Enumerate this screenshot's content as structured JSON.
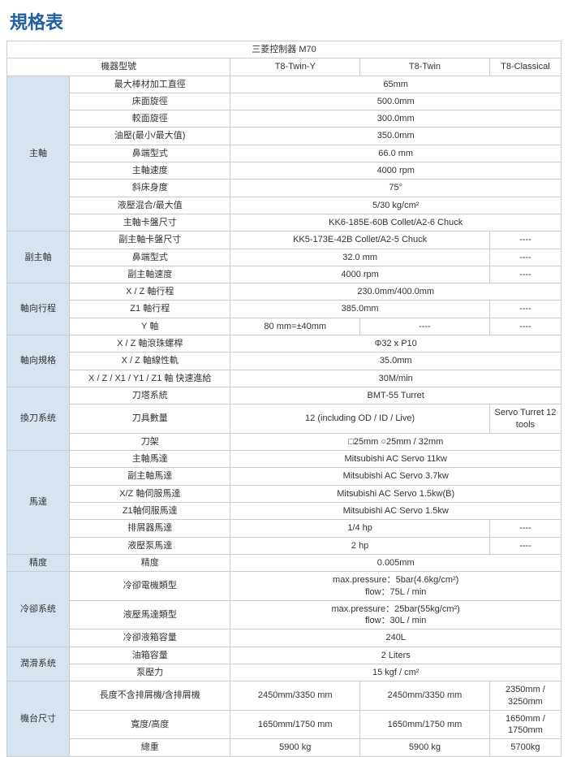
{
  "title": "規格表",
  "controller": "三菱控制器 M70",
  "modelLabel": "機器型號",
  "cols": [
    "T8-Twin-Y",
    "T8-Twin",
    "T8-Classical"
  ],
  "dash": "----",
  "g": {
    "spindle": {
      "cat": "主軸",
      "r1": [
        "最大棒材加工直徑",
        "65mm"
      ],
      "r2": [
        "床面旋徑",
        "500.0mm"
      ],
      "r3": [
        "較面旋徑",
        "300.0mm"
      ],
      "r4": [
        "油壓(最小/最大值)",
        "350.0mm"
      ],
      "r5": [
        "鼻端型式",
        "66.0 mm"
      ],
      "r6": [
        "主軸速度",
        "4000 rpm"
      ],
      "r7": [
        "斜床身度",
        "75°"
      ],
      "r8": [
        "液壓混合/最大值",
        "5/30 kg/cm²"
      ],
      "r9": [
        "主軸卡盤尺寸",
        "KK6-185E-60B Collet/A2-6 Chuck"
      ]
    },
    "sub": {
      "cat": "副主軸",
      "r1": [
        "副主軸卡盤尺寸",
        "KK5-173E-42B Collet/A2-5 Chuck"
      ],
      "r2": [
        "鼻端型式",
        "32.0 mm"
      ],
      "r3": [
        "副主軸速度",
        "4000 rpm"
      ]
    },
    "axial": {
      "cat": "軸向行程",
      "r1": [
        "X / Z 軸行程",
        "230.0mm/400.0mm"
      ],
      "r2": [
        "Z1 軸行程",
        "385.0mm"
      ],
      "r3": [
        "Y 軸",
        "80 mm=±40mm"
      ]
    },
    "axspec": {
      "cat": "軸向規格",
      "r1": [
        "X / Z 軸滾珠螺桿",
        "Φ32 x P10"
      ],
      "r2": [
        "X / Z 軸線性軌",
        "35.0mm"
      ],
      "r3": [
        "X / Z / X1 / Y1 / Z1 軸 快速進給",
        "30M/min"
      ]
    },
    "tool": {
      "cat": "換刀系统",
      "r1": [
        "刀塔系統",
        "BMT-55 Turret"
      ],
      "r2": [
        "刀具數量",
        "12 (including OD / ID / Live)",
        "Servo Turret 12 tools"
      ],
      "r3": [
        "刀架",
        "□25mm ○25mm / 32mm"
      ]
    },
    "motor": {
      "cat": "馬達",
      "r1": [
        "主軸馬達",
        "Mitsubishi AC Servo 11kw"
      ],
      "r2": [
        "副主軸馬達",
        "Mitsubishi AC Servo 3.7kw"
      ],
      "r3": [
        "X/Z 軸伺服馬達",
        "Mitsubishi AC Servo 1.5kw(B)"
      ],
      "r4": [
        "Z1軸伺服馬達",
        "Mitsubishi AC Servo 1.5kw"
      ],
      "r5": [
        "排屑器馬達",
        "1/4 hp"
      ],
      "r6": [
        "液壓泵馬達",
        "2 hp"
      ]
    },
    "prec": {
      "cat": "精度",
      "r1": [
        "精度",
        "0.005mm"
      ]
    },
    "cool": {
      "cat": "冷卻系统",
      "r1": [
        "冷卻電機類型",
        "max.pressure：5bar(4.6kg/cm²)\nflow：75L / min"
      ],
      "r2": [
        "液壓馬達類型",
        "max.pressure：25bar(55kg/cm²)\nflow：30L / min"
      ],
      "r3": [
        "冷卻液箱容量",
        "240L"
      ]
    },
    "lub": {
      "cat": "潤滑系统",
      "r1": [
        "油箱容量",
        "2 Liters"
      ],
      "r2": [
        "泵壓力",
        "15 kgf / cm²"
      ]
    },
    "dim": {
      "cat": "機台尺寸",
      "r1": [
        "長度不含排屑機/含排屑機",
        "2450mm/3350 mm",
        "2450mm/3350 mm",
        "2350mm / 3250mm"
      ],
      "r2": [
        "寬度/高度",
        "1650mm/1750 mm",
        "1650mm/1750 mm",
        "1650mm / 1750mm"
      ],
      "r3": [
        "總重",
        "5900 kg",
        "5900 kg",
        "5700kg"
      ]
    }
  }
}
